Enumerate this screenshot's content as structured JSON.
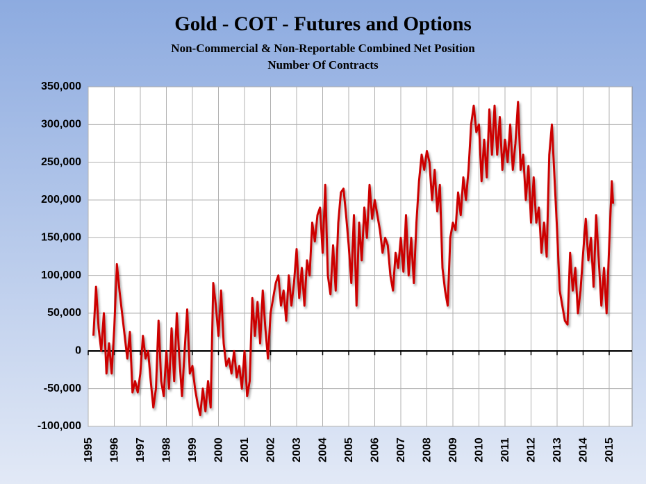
{
  "chart_data": {
    "type": "line",
    "title": "Gold - COT - Futures and Options",
    "subtitle": [
      "Non-Commercial & Non-Reportable Combined Net Position",
      "Number Of Contracts"
    ],
    "xlim": [
      1995,
      2015.88
    ],
    "xticks": [
      1995,
      1996,
      1997,
      1998,
      1999,
      2000,
      2001,
      2002,
      2003,
      2004,
      2005,
      2006,
      2007,
      2008,
      2009,
      2010,
      2011,
      2012,
      2013,
      2014,
      2015
    ],
    "ylim": [
      -100000,
      350000
    ],
    "yticks": [
      {
        "value": -100000,
        "label": "-100,000"
      },
      {
        "value": -50000,
        "label": "-50,000"
      },
      0,
      {
        "value": 50000,
        "label": "50,000"
      },
      {
        "value": 100000,
        "label": "100,000"
      },
      {
        "value": 150000,
        "label": "150,000"
      },
      {
        "value": 200000,
        "label": "200,000"
      },
      {
        "value": 250000,
        "label": "250,000"
      },
      {
        "value": 300000,
        "label": "300,000"
      },
      {
        "value": 350000,
        "label": "350,000"
      }
    ],
    "grid": true,
    "x": [
      1995.2,
      1995.3,
      1995.4,
      1995.5,
      1995.6,
      1995.7,
      1995.8,
      1995.9,
      1996.0,
      1996.1,
      1996.2,
      1996.3,
      1996.4,
      1996.5,
      1996.6,
      1996.7,
      1996.8,
      1996.9,
      1997.0,
      1997.1,
      1997.2,
      1997.3,
      1997.4,
      1997.5,
      1997.6,
      1997.7,
      1997.8,
      1997.9,
      1998.0,
      1998.1,
      1998.2,
      1998.3,
      1998.4,
      1998.5,
      1998.6,
      1998.7,
      1998.8,
      1998.9,
      1999.0,
      1999.1,
      1999.2,
      1999.3,
      1999.4,
      1999.5,
      1999.6,
      1999.7,
      1999.8,
      1999.9,
      2000.0,
      2000.1,
      2000.2,
      2000.3,
      2000.4,
      2000.5,
      2000.6,
      2000.7,
      2000.8,
      2000.9,
      2001.0,
      2001.1,
      2001.2,
      2001.3,
      2001.4,
      2001.5,
      2001.6,
      2001.7,
      2001.8,
      2001.9,
      2002.0,
      2002.1,
      2002.2,
      2002.3,
      2002.4,
      2002.5,
      2002.6,
      2002.7,
      2002.8,
      2002.9,
      2003.0,
      2003.1,
      2003.2,
      2003.3,
      2003.4,
      2003.5,
      2003.6,
      2003.7,
      2003.8,
      2003.9,
      2004.0,
      2004.1,
      2004.2,
      2004.3,
      2004.4,
      2004.5,
      2004.6,
      2004.7,
      2004.8,
      2004.9,
      2005.0,
      2005.1,
      2005.2,
      2005.3,
      2005.4,
      2005.5,
      2005.6,
      2005.7,
      2005.8,
      2005.9,
      2006.0,
      2006.1,
      2006.2,
      2006.3,
      2006.4,
      2006.5,
      2006.6,
      2006.7,
      2006.8,
      2006.9,
      2007.0,
      2007.1,
      2007.2,
      2007.3,
      2007.4,
      2007.5,
      2007.6,
      2007.7,
      2007.8,
      2007.9,
      2008.0,
      2008.1,
      2008.2,
      2008.3,
      2008.4,
      2008.5,
      2008.6,
      2008.7,
      2008.8,
      2008.9,
      2009.0,
      2009.1,
      2009.2,
      2009.3,
      2009.4,
      2009.5,
      2009.6,
      2009.7,
      2009.8,
      2009.9,
      2010.0,
      2010.1,
      2010.2,
      2010.3,
      2010.4,
      2010.5,
      2010.6,
      2010.7,
      2010.8,
      2010.9,
      2011.0,
      2011.1,
      2011.2,
      2011.3,
      2011.4,
      2011.5,
      2011.6,
      2011.7,
      2011.8,
      2011.9,
      2012.0,
      2012.1,
      2012.2,
      2012.3,
      2012.4,
      2012.5,
      2012.6,
      2012.7,
      2012.8,
      2012.9,
      2013.0,
      2013.1,
      2013.2,
      2013.3,
      2013.4,
      2013.5,
      2013.6,
      2013.7,
      2013.8,
      2013.9,
      2014.0,
      2014.1,
      2014.2,
      2014.3,
      2014.4,
      2014.5,
      2014.6,
      2014.7,
      2014.8,
      2014.9,
      2015.0,
      2015.1,
      2015.15
    ],
    "series": [
      {
        "color": "#cc0000",
        "values": [
          20000,
          85000,
          30000,
          0,
          50000,
          -30000,
          10000,
          -30000,
          30000,
          115000,
          80000,
          50000,
          20000,
          -10000,
          25000,
          -55000,
          -40000,
          -55000,
          -30000,
          20000,
          -10000,
          0,
          -40000,
          -75000,
          -50000,
          40000,
          -40000,
          -60000,
          0,
          -50000,
          30000,
          -40000,
          50000,
          -10000,
          -60000,
          0,
          55000,
          -30000,
          -20000,
          -50000,
          -70000,
          -85000,
          -50000,
          -80000,
          -40000,
          -75000,
          90000,
          60000,
          20000,
          80000,
          10000,
          -20000,
          -10000,
          -30000,
          0,
          -35000,
          -20000,
          -50000,
          0,
          -60000,
          -40000,
          70000,
          20000,
          65000,
          10000,
          80000,
          30000,
          -10000,
          50000,
          70000,
          90000,
          100000,
          60000,
          80000,
          40000,
          100000,
          60000,
          90000,
          135000,
          70000,
          110000,
          60000,
          120000,
          100000,
          170000,
          145000,
          180000,
          190000,
          130000,
          220000,
          100000,
          75000,
          140000,
          80000,
          170000,
          210000,
          215000,
          180000,
          140000,
          90000,
          180000,
          60000,
          170000,
          120000,
          190000,
          150000,
          220000,
          175000,
          200000,
          180000,
          160000,
          130000,
          150000,
          140000,
          100000,
          80000,
          130000,
          110000,
          150000,
          105000,
          180000,
          100000,
          150000,
          90000,
          170000,
          225000,
          260000,
          240000,
          265000,
          250000,
          200000,
          240000,
          185000,
          220000,
          110000,
          80000,
          60000,
          150000,
          170000,
          160000,
          210000,
          180000,
          230000,
          200000,
          240000,
          300000,
          325000,
          290000,
          300000,
          225000,
          280000,
          230000,
          320000,
          260000,
          325000,
          260000,
          310000,
          240000,
          280000,
          250000,
          300000,
          240000,
          275000,
          330000,
          240000,
          260000,
          200000,
          245000,
          170000,
          230000,
          170000,
          190000,
          130000,
          170000,
          125000,
          260000,
          300000,
          230000,
          160000,
          80000,
          60000,
          40000,
          35000,
          130000,
          80000,
          110000,
          50000,
          80000,
          130000,
          175000,
          120000,
          150000,
          85000,
          180000,
          120000,
          60000,
          110000,
          50000,
          140000,
          225000,
          195000
        ]
      }
    ]
  }
}
